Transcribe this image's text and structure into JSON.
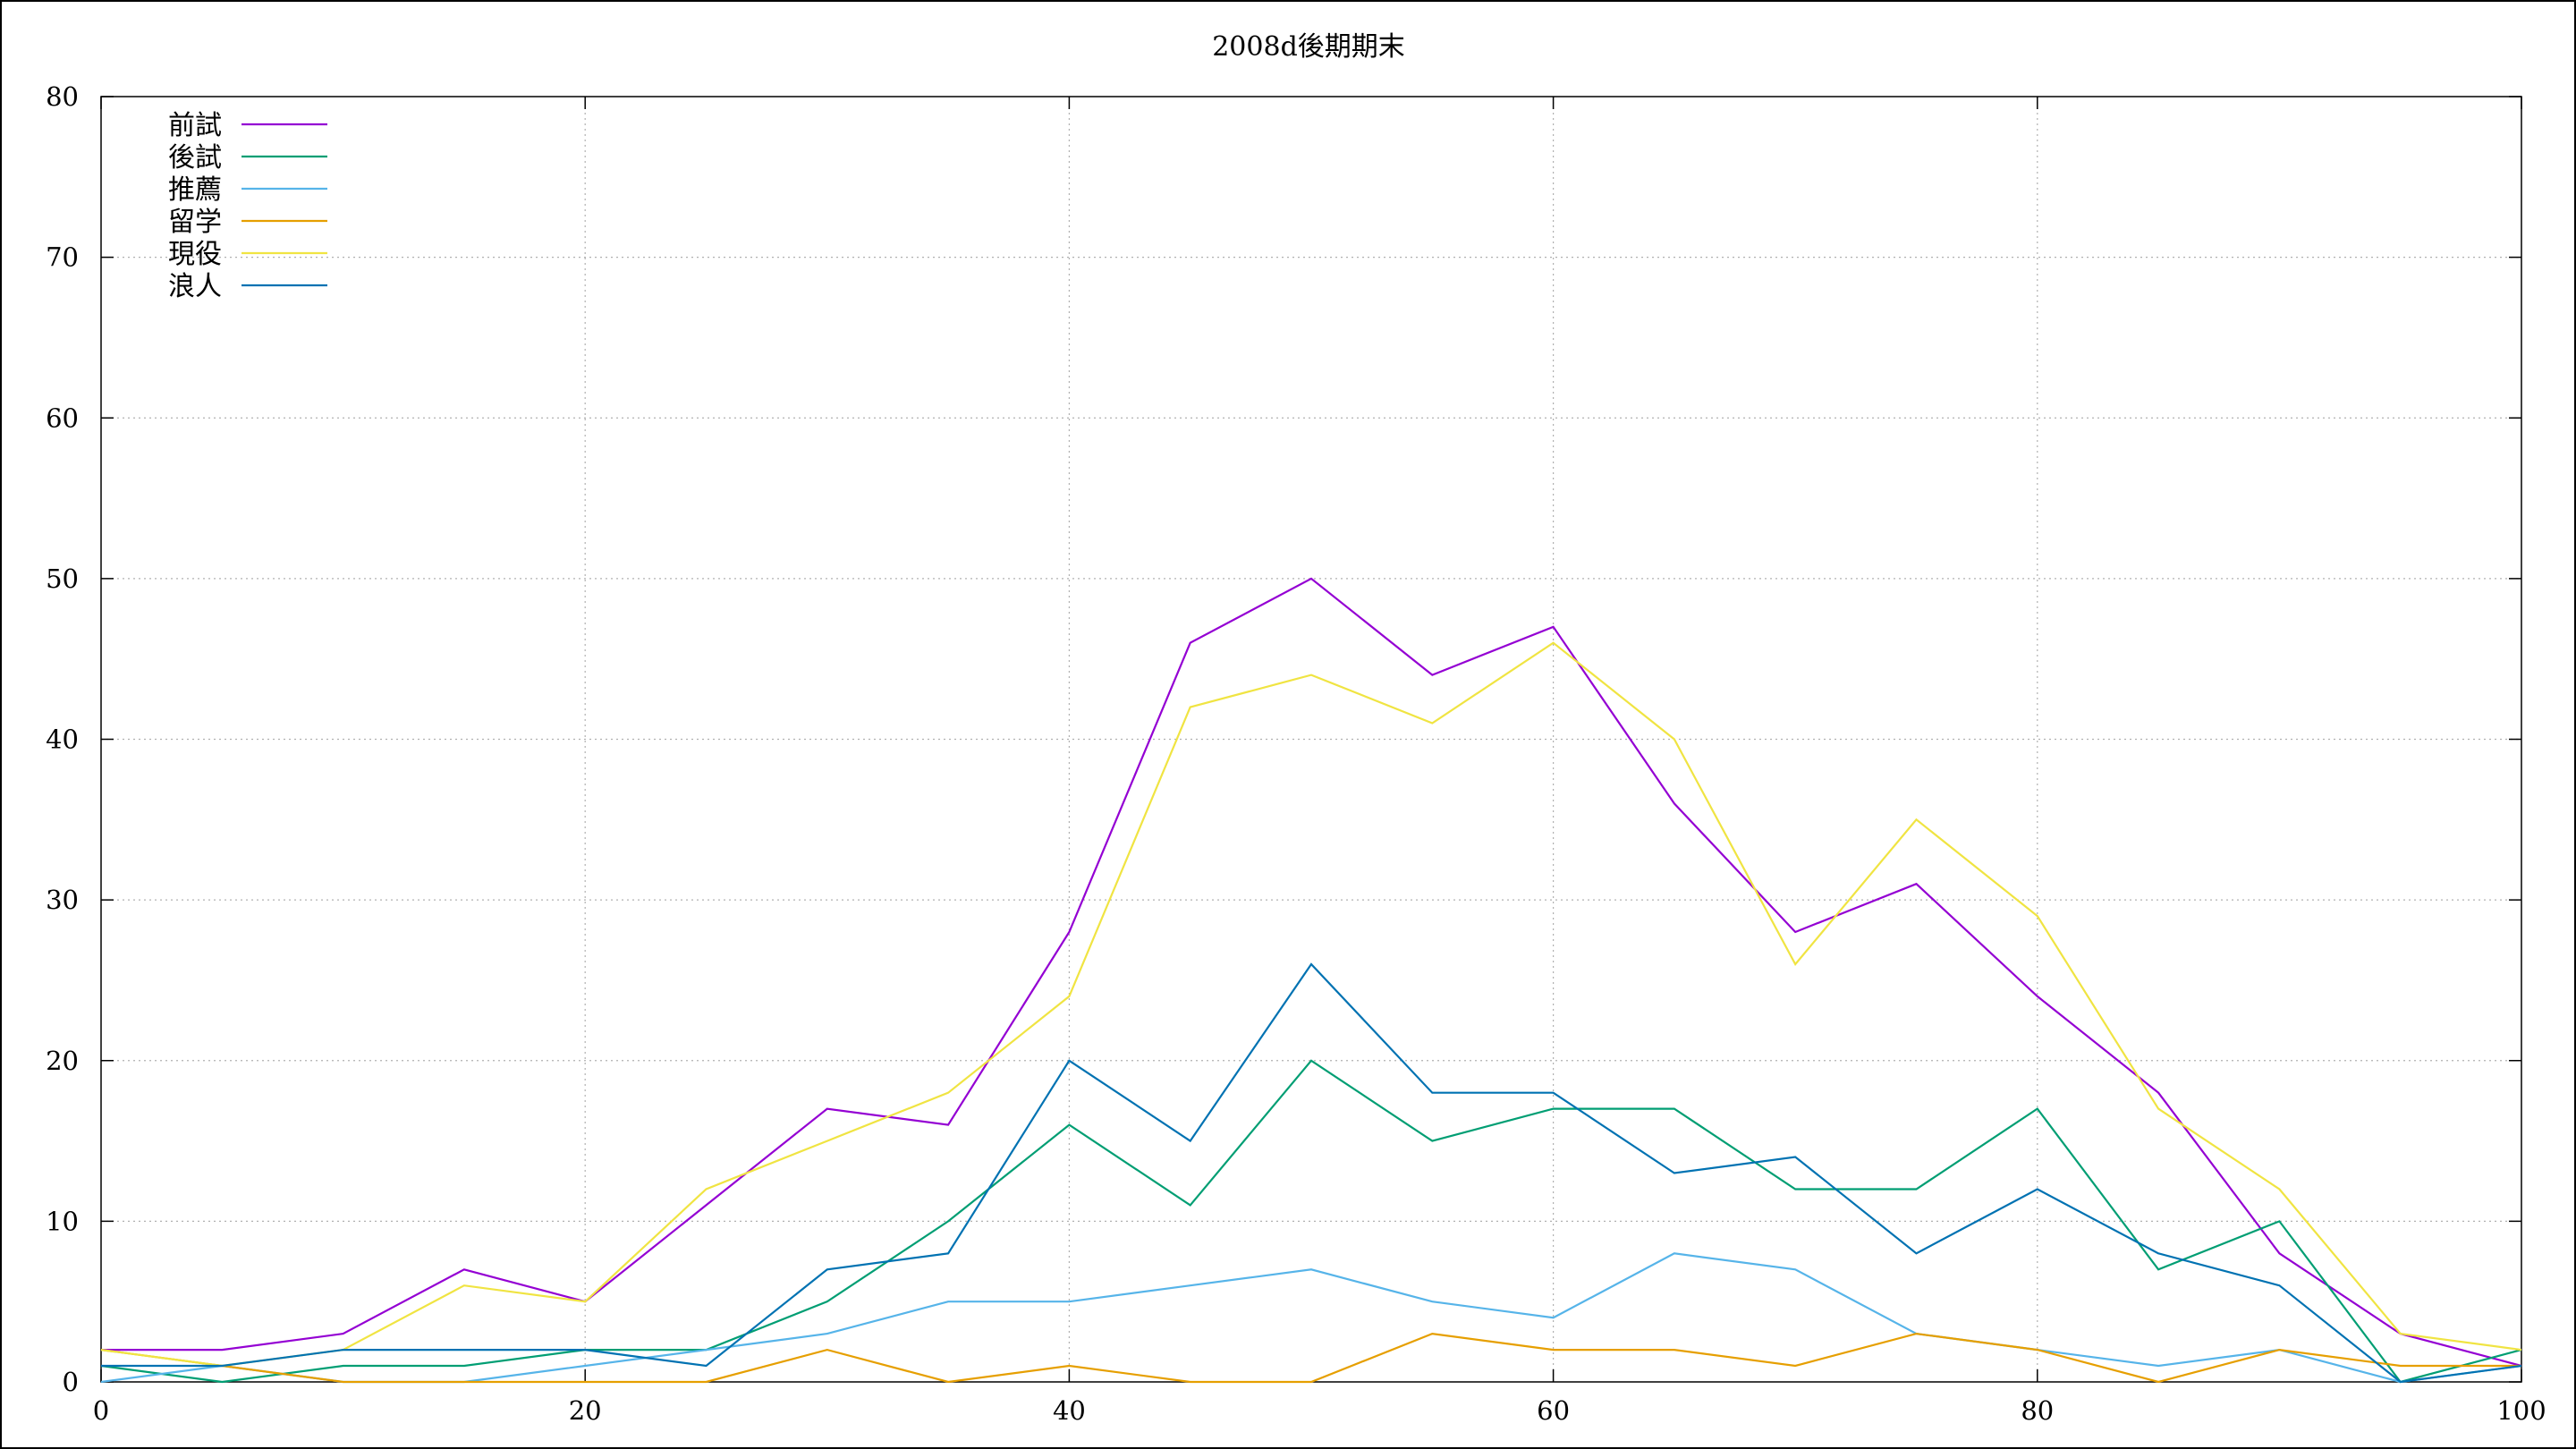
{
  "chart_data": {
    "type": "line",
    "title": "2008d後期期末",
    "xlabel": "",
    "ylabel": "",
    "xlim": [
      0,
      100
    ],
    "ylim": [
      0,
      80
    ],
    "xticks": [
      0,
      20,
      40,
      60,
      80,
      100
    ],
    "yticks": [
      0,
      10,
      20,
      30,
      40,
      50,
      60,
      70,
      80
    ],
    "xtick_labels": [
      "0",
      "20",
      "40",
      "60",
      "80",
      "100"
    ],
    "ytick_labels": [
      "0",
      "10",
      "20",
      "30",
      "40",
      "50",
      "60",
      "70",
      "80"
    ],
    "grid": true,
    "legend": "top-left",
    "x": [
      0,
      5,
      10,
      15,
      20,
      25,
      30,
      35,
      40,
      45,
      50,
      55,
      60,
      65,
      70,
      75,
      80,
      85,
      90,
      95,
      100
    ],
    "series": [
      {
        "name": "前試",
        "color": "#9400d3",
        "values": [
          2,
          2,
          3,
          7,
          5,
          11,
          17,
          16,
          28,
          46,
          50,
          44,
          47,
          36,
          28,
          31,
          24,
          18,
          8,
          3,
          1
        ]
      },
      {
        "name": "後試",
        "color": "#009e73",
        "values": [
          1,
          0,
          1,
          1,
          2,
          2,
          5,
          10,
          16,
          11,
          20,
          15,
          17,
          17,
          12,
          12,
          17,
          7,
          10,
          0,
          2
        ]
      },
      {
        "name": "推薦",
        "color": "#56b4e9",
        "values": [
          0,
          1,
          0,
          0,
          1,
          2,
          3,
          5,
          5,
          6,
          7,
          5,
          4,
          8,
          7,
          3,
          2,
          1,
          2,
          0,
          1
        ]
      },
      {
        "name": "留学",
        "color": "#e69f00",
        "values": [
          2,
          1,
          0,
          0,
          0,
          0,
          2,
          0,
          1,
          0,
          0,
          3,
          2,
          2,
          1,
          3,
          2,
          0,
          2,
          1,
          1
        ]
      },
      {
        "name": "現役",
        "color": "#f0e442",
        "values": [
          2,
          1,
          2,
          6,
          5,
          12,
          15,
          18,
          24,
          42,
          44,
          41,
          46,
          40,
          26,
          35,
          29,
          17,
          12,
          3,
          2
        ]
      },
      {
        "name": "浪人",
        "color": "#0072b2",
        "values": [
          1,
          1,
          2,
          2,
          2,
          1,
          7,
          8,
          20,
          15,
          26,
          18,
          18,
          13,
          14,
          8,
          12,
          8,
          6,
          0,
          1
        ]
      }
    ]
  }
}
